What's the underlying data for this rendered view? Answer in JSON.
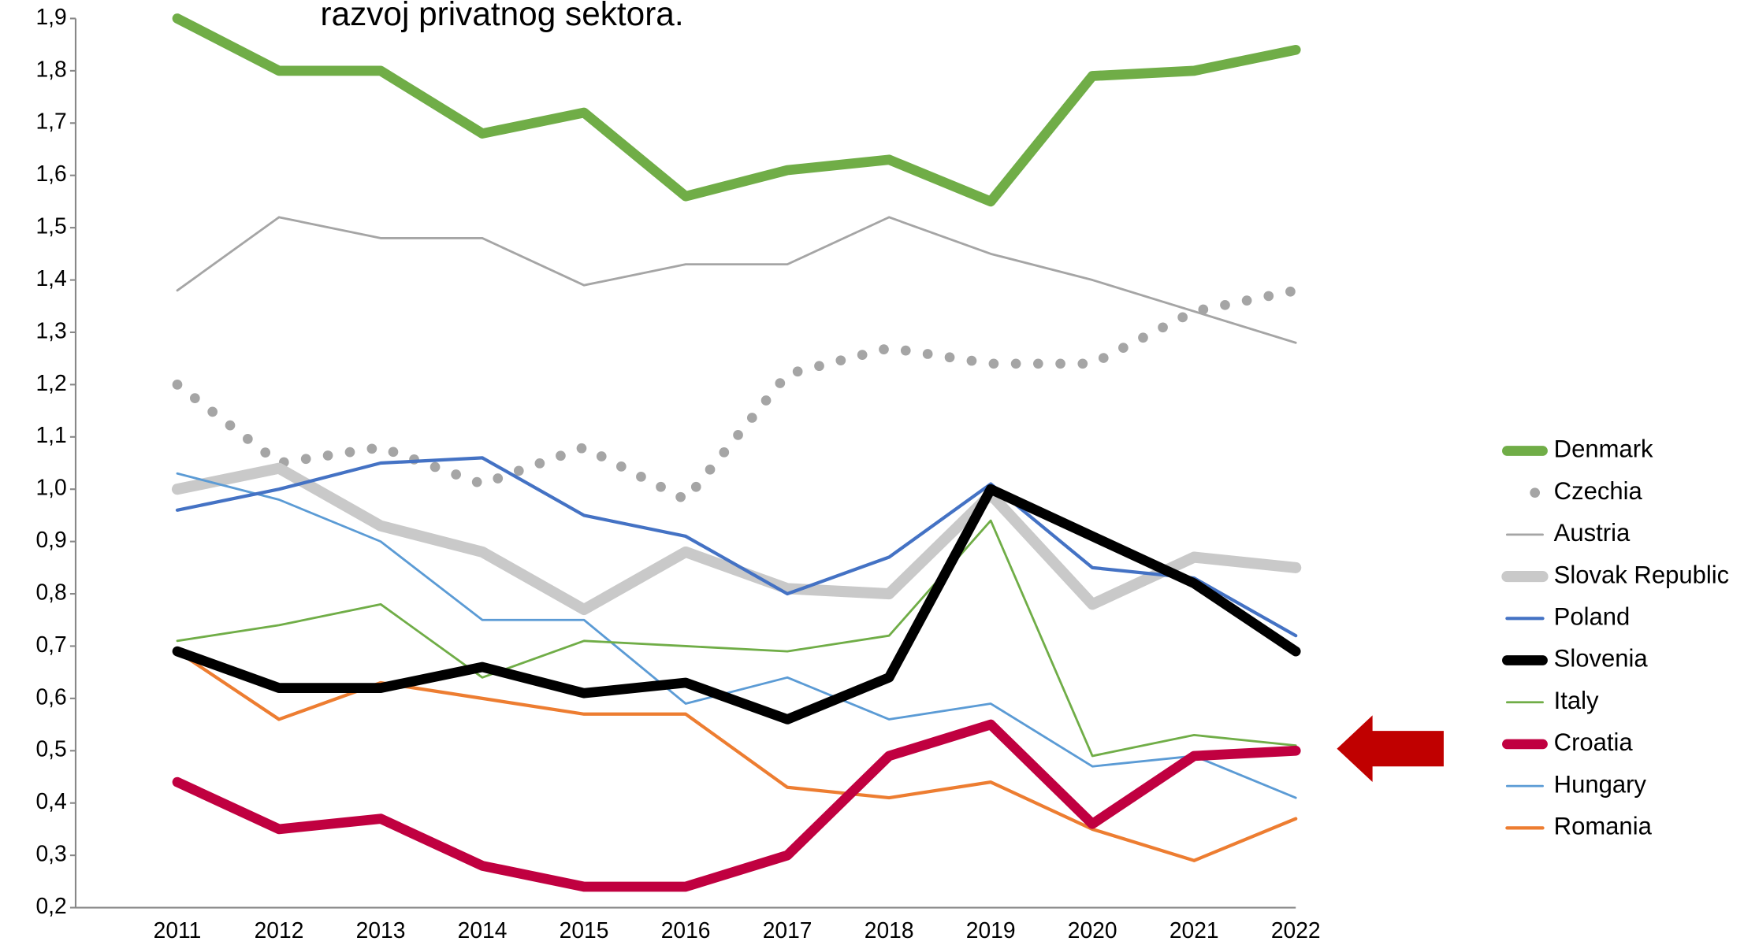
{
  "chart_data": {
    "type": "line",
    "title": "razvoj privatnog sektora.",
    "categories": [
      "2011",
      "2012",
      "2013",
      "2014",
      "2015",
      "2016",
      "2017",
      "2018",
      "2019",
      "2020",
      "2021",
      "2022"
    ],
    "ylim": [
      0.2,
      1.9
    ],
    "yticks": [
      {
        "value": 0.2,
        "label": "0,2"
      },
      {
        "value": 0.3,
        "label": "0,3"
      },
      {
        "value": 0.4,
        "label": "0,4"
      },
      {
        "value": 0.5,
        "label": "0,5"
      },
      {
        "value": 0.6,
        "label": "0,6"
      },
      {
        "value": 0.7,
        "label": "0,7"
      },
      {
        "value": 0.8,
        "label": "0,8"
      },
      {
        "value": 0.9,
        "label": "0,9"
      },
      {
        "value": 1.0,
        "label": "1,0"
      },
      {
        "value": 1.1,
        "label": "1,1"
      },
      {
        "value": 1.2,
        "label": "1,2"
      },
      {
        "value": 1.3,
        "label": "1,3"
      },
      {
        "value": 1.4,
        "label": "1,4"
      },
      {
        "value": 1.5,
        "label": "1,5"
      },
      {
        "value": 1.6,
        "label": "1,6"
      },
      {
        "value": 1.7,
        "label": "1,7"
      },
      {
        "value": 1.8,
        "label": "1,8"
      },
      {
        "value": 1.9,
        "label": "1,9"
      }
    ],
    "grid": false,
    "legend": "right",
    "series": [
      {
        "name": "Denmark",
        "color": "#70ad47",
        "values": [
          1.9,
          1.8,
          1.8,
          1.68,
          1.72,
          1.56,
          1.61,
          1.63,
          1.55,
          1.79,
          1.8,
          1.84
        ]
      },
      {
        "name": "Czechia",
        "color": "#a5a5a5",
        "style": "dotted",
        "values": [
          1.2,
          1.05,
          1.08,
          1.01,
          1.08,
          0.98,
          1.22,
          1.27,
          1.24,
          1.24,
          1.34,
          1.38
        ]
      },
      {
        "name": "Austria",
        "color": "#a5a5a5",
        "values": [
          1.38,
          1.52,
          1.48,
          1.48,
          1.39,
          1.43,
          1.43,
          1.52,
          1.45,
          1.4,
          1.34,
          1.28
        ]
      },
      {
        "name": "Slovak Republic",
        "color": "#c9c9c9",
        "values": [
          1.0,
          1.04,
          0.93,
          0.88,
          0.77,
          0.88,
          0.81,
          0.8,
          0.99,
          0.78,
          0.87,
          0.85
        ]
      },
      {
        "name": "Poland",
        "color": "#4472c4",
        "values": [
          0.96,
          1.0,
          1.05,
          1.06,
          0.95,
          0.91,
          0.8,
          0.87,
          1.01,
          0.85,
          0.83,
          0.72
        ]
      },
      {
        "name": "Slovenia",
        "color": "#000000",
        "values": [
          0.69,
          0.62,
          0.62,
          0.66,
          0.61,
          0.63,
          0.56,
          0.64,
          1.0,
          0.91,
          0.82,
          0.69
        ]
      },
      {
        "name": "Italy",
        "color": "#70ad47",
        "values": [
          0.71,
          0.74,
          0.78,
          0.64,
          0.71,
          0.7,
          0.69,
          0.72,
          0.94,
          0.49,
          0.53,
          0.51
        ]
      },
      {
        "name": "Croatia",
        "color": "#c00040",
        "values": [
          0.44,
          0.35,
          0.37,
          0.28,
          0.24,
          0.24,
          0.3,
          0.49,
          0.55,
          0.36,
          0.49,
          0.5
        ]
      },
      {
        "name": "Hungary",
        "color": "#5b9bd5",
        "values": [
          1.03,
          0.98,
          0.9,
          0.75,
          0.75,
          0.59,
          0.64,
          0.56,
          0.59,
          0.47,
          0.49,
          0.41
        ]
      },
      {
        "name": "Romania",
        "color": "#ed7d31",
        "values": [
          0.69,
          0.56,
          0.63,
          0.6,
          0.57,
          0.57,
          0.43,
          0.41,
          0.44,
          0.35,
          0.29,
          0.37
        ]
      }
    ]
  }
}
